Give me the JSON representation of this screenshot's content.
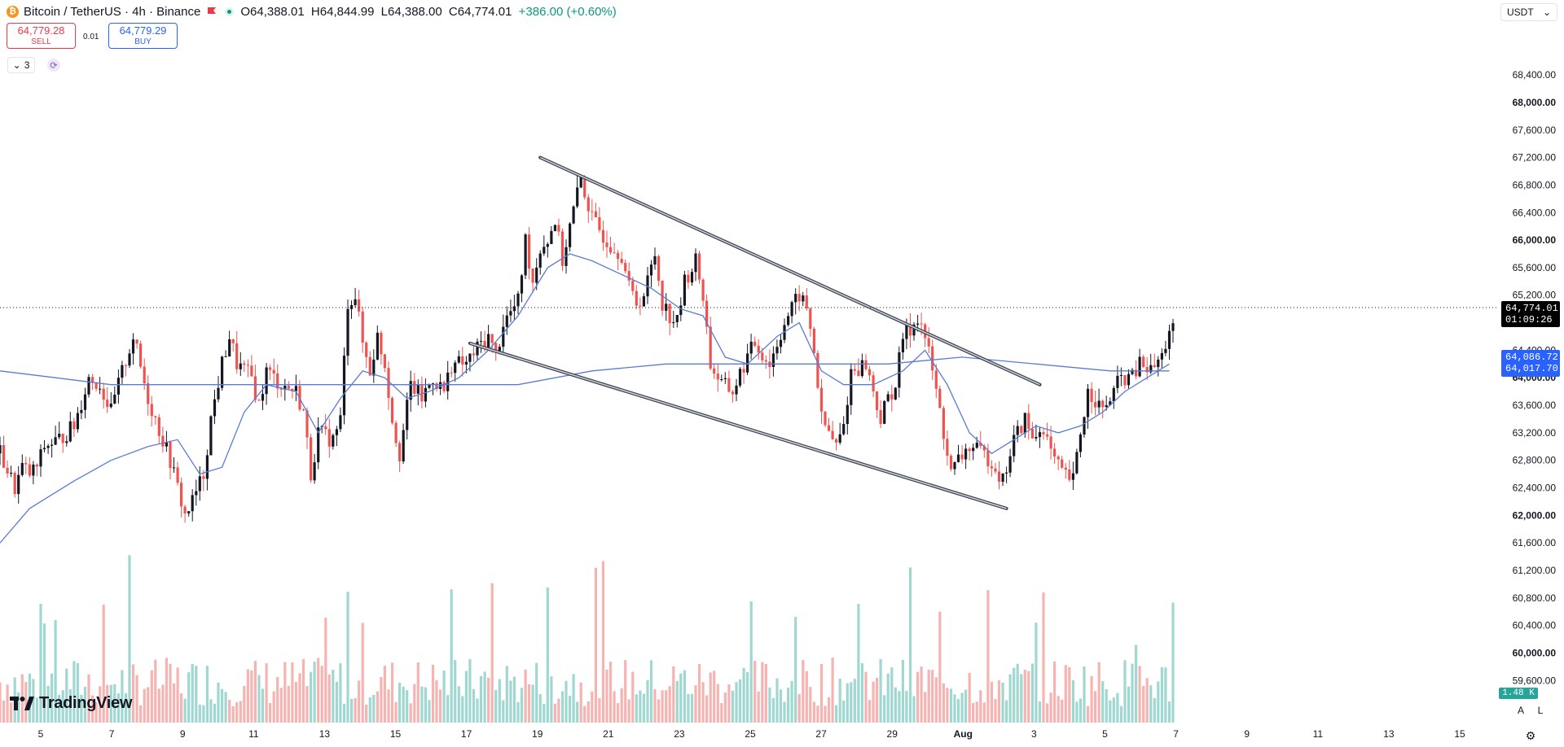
{
  "header": {
    "coin_icon": "bitcoin-icon",
    "symbol": "Bitcoin / TetherUS · 4h · Binance",
    "open": "O64,388.01",
    "high": "H64,844.99",
    "low": "L64,388.00",
    "close": "C64,774.01",
    "change": "+386.00 (+0.60%)"
  },
  "trade": {
    "sell_price": "64,779.28",
    "sell_label": "SELL",
    "spread": "0.01",
    "buy_price": "64,779.29",
    "buy_label": "BUY"
  },
  "indicators": {
    "collapsed_count": "3"
  },
  "currency": {
    "value": "USDT"
  },
  "tags": {
    "last_price": "64,774.01",
    "countdown": "01:09:26",
    "ma_slow": "64,086.72",
    "ma_fast": "64,017.70",
    "volume": "1.48 K"
  },
  "scale_buttons": {
    "auto": "A",
    "log": "L"
  },
  "brand": {
    "name": "TradingView"
  },
  "colors": {
    "up": "#26a69a",
    "down": "#ef5350",
    "ma": "#5b7bd5",
    "trendline": "#3c4150"
  },
  "chart_data": {
    "type": "candlestick",
    "interval": "4h",
    "x_labels": [
      "5",
      "7",
      "9",
      "11",
      "13",
      "15",
      "17",
      "19",
      "21",
      "23",
      "25",
      "27",
      "29",
      "Aug",
      "3",
      "5",
      "7",
      "9",
      "11",
      "13",
      "15"
    ],
    "y_ticks": [
      68400,
      68000,
      67600,
      67200,
      66800,
      66400,
      66000,
      65600,
      65200,
      64800,
      64400,
      64000,
      63600,
      63200,
      62800,
      62400,
      62000,
      61600,
      61200,
      60800,
      60400,
      60000,
      59600
    ],
    "ylim": [
      59320,
      68780
    ],
    "grid": false,
    "series": [
      {
        "name": "trend",
        "values": [
          [
            0,
            62900
          ],
          [
            4,
            62400
          ],
          [
            6,
            62700
          ],
          [
            8,
            62600
          ],
          [
            10,
            62700
          ],
          [
            12,
            63000
          ],
          [
            16,
            63100
          ],
          [
            20,
            63300
          ],
          [
            24,
            64000
          ],
          [
            27,
            63900
          ],
          [
            30,
            63500
          ],
          [
            32,
            63900
          ],
          [
            36,
            64600
          ],
          [
            40,
            63700
          ],
          [
            44,
            63100
          ],
          [
            46,
            62800
          ],
          [
            48,
            62400
          ],
          [
            50,
            62000
          ],
          [
            52,
            62200
          ],
          [
            55,
            62600
          ],
          [
            57,
            63400
          ],
          [
            60,
            64200
          ],
          [
            62,
            64600
          ],
          [
            64,
            64200
          ],
          [
            66,
            64100
          ],
          [
            68,
            64000
          ],
          [
            70,
            63600
          ],
          [
            72,
            64100
          ],
          [
            76,
            63900
          ],
          [
            80,
            63800
          ],
          [
            82,
            63500
          ],
          [
            84,
            62600
          ],
          [
            86,
            63200
          ],
          [
            90,
            63100
          ],
          [
            92,
            63400
          ],
          [
            94,
            65100
          ],
          [
            96,
            65200
          ],
          [
            98,
            64500
          ],
          [
            100,
            64100
          ],
          [
            102,
            64600
          ],
          [
            104,
            64200
          ],
          [
            106,
            63400
          ],
          [
            108,
            62900
          ],
          [
            111,
            63900
          ],
          [
            114,
            63700
          ],
          [
            117,
            64000
          ],
          [
            120,
            63800
          ],
          [
            122,
            64200
          ],
          [
            126,
            64200
          ],
          [
            130,
            64500
          ],
          [
            132,
            64600
          ],
          [
            134,
            64300
          ],
          [
            136,
            64800
          ],
          [
            140,
            65100
          ],
          [
            142,
            66000
          ],
          [
            144,
            65400
          ],
          [
            146,
            65900
          ],
          [
            148,
            66000
          ],
          [
            150,
            66300
          ],
          [
            152,
            65700
          ],
          [
            154,
            66200
          ],
          [
            157,
            66900
          ],
          [
            160,
            66300
          ],
          [
            164,
            66000
          ],
          [
            168,
            65800
          ],
          [
            170,
            65300
          ],
          [
            172,
            65100
          ],
          [
            174,
            65200
          ],
          [
            177,
            65800
          ],
          [
            179,
            65100
          ],
          [
            181,
            64900
          ],
          [
            183,
            64800
          ],
          [
            185,
            65400
          ],
          [
            188,
            65700
          ],
          [
            190,
            65200
          ],
          [
            192,
            64200
          ],
          [
            195,
            63900
          ],
          [
            198,
            63800
          ],
          [
            202,
            64300
          ],
          [
            204,
            64500
          ],
          [
            208,
            64200
          ],
          [
            210,
            64500
          ],
          [
            212,
            64800
          ],
          [
            216,
            65200
          ],
          [
            218,
            65000
          ],
          [
            220,
            64400
          ],
          [
            222,
            63400
          ],
          [
            224,
            63200
          ],
          [
            226,
            63000
          ],
          [
            228,
            63300
          ],
          [
            230,
            64100
          ],
          [
            234,
            64200
          ],
          [
            236,
            63800
          ],
          [
            238,
            63400
          ],
          [
            240,
            63700
          ],
          [
            242,
            63900
          ],
          [
            244,
            64600
          ],
          [
            246,
            64700
          ],
          [
            248,
            64900
          ],
          [
            250,
            64600
          ],
          [
            252,
            64100
          ],
          [
            255,
            63200
          ],
          [
            257,
            62600
          ],
          [
            259,
            62800
          ],
          [
            262,
            63000
          ],
          [
            265,
            62900
          ],
          [
            268,
            62800
          ],
          [
            271,
            62500
          ],
          [
            274,
            63100
          ],
          [
            277,
            63400
          ],
          [
            279,
            63100
          ],
          [
            282,
            63300
          ],
          [
            284,
            62900
          ],
          [
            287,
            62600
          ],
          [
            290,
            62500
          ],
          [
            292,
            63200
          ],
          [
            294,
            63800
          ],
          [
            296,
            63700
          ],
          [
            298,
            63500
          ],
          [
            301,
            63800
          ],
          [
            303,
            64000
          ],
          [
            306,
            64000
          ],
          [
            308,
            64200
          ],
          [
            311,
            64100
          ],
          [
            314,
            64300
          ],
          [
            316,
            64700
          ]
        ]
      },
      {
        "name": "ma_fast",
        "values": [
          [
            0,
            61600
          ],
          [
            8,
            62100
          ],
          [
            20,
            62500
          ],
          [
            30,
            62800
          ],
          [
            40,
            63000
          ],
          [
            48,
            63100
          ],
          [
            54,
            62600
          ],
          [
            60,
            62700
          ],
          [
            66,
            63500
          ],
          [
            72,
            63900
          ],
          [
            80,
            63800
          ],
          [
            86,
            63200
          ],
          [
            92,
            63700
          ],
          [
            98,
            64100
          ],
          [
            104,
            64000
          ],
          [
            110,
            63700
          ],
          [
            116,
            63800
          ],
          [
            124,
            64000
          ],
          [
            132,
            64400
          ],
          [
            140,
            64900
          ],
          [
            148,
            65600
          ],
          [
            154,
            65800
          ],
          [
            160,
            65700
          ],
          [
            168,
            65500
          ],
          [
            176,
            65300
          ],
          [
            184,
            65000
          ],
          [
            190,
            64900
          ],
          [
            196,
            64300
          ],
          [
            202,
            64200
          ],
          [
            210,
            64600
          ],
          [
            216,
            64800
          ],
          [
            222,
            64100
          ],
          [
            228,
            63900
          ],
          [
            236,
            63900
          ],
          [
            244,
            64100
          ],
          [
            250,
            64400
          ],
          [
            256,
            63900
          ],
          [
            262,
            63200
          ],
          [
            268,
            62900
          ],
          [
            274,
            63100
          ],
          [
            280,
            63300
          ],
          [
            286,
            63200
          ],
          [
            292,
            63300
          ],
          [
            298,
            63500
          ],
          [
            304,
            63800
          ],
          [
            310,
            64000
          ],
          [
            316,
            64200
          ]
        ]
      },
      {
        "name": "ma_slow",
        "values": [
          [
            0,
            64100
          ],
          [
            15,
            64000
          ],
          [
            30,
            63900
          ],
          [
            45,
            63900
          ],
          [
            60,
            63900
          ],
          [
            80,
            63900
          ],
          [
            100,
            63900
          ],
          [
            120,
            63900
          ],
          [
            140,
            63900
          ],
          [
            160,
            64100
          ],
          [
            180,
            64200
          ],
          [
            200,
            64200
          ],
          [
            220,
            64200
          ],
          [
            240,
            64200
          ],
          [
            260,
            64300
          ],
          [
            280,
            64200
          ],
          [
            300,
            64100
          ],
          [
            316,
            64100
          ]
        ]
      },
      {
        "name": "upper_trendline",
        "values": [
          [
            146,
            67200
          ],
          [
            281,
            63900
          ]
        ]
      },
      {
        "name": "lower_trendline",
        "values": [
          [
            127,
            64500
          ],
          [
            272,
            62100
          ]
        ]
      }
    ],
    "candles": 318,
    "volume_range": [
      59320,
      61400
    ]
  }
}
